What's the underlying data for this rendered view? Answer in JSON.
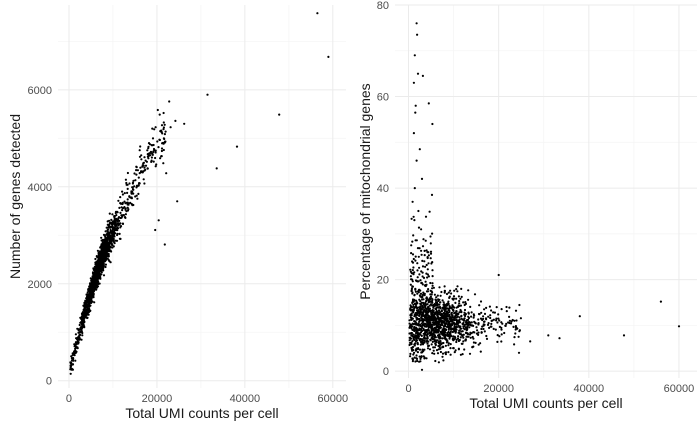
{
  "chart_data": [
    {
      "type": "scatter",
      "xlabel": "Total UMI counts per cell",
      "ylabel": "Number of genes detected",
      "xlim": [
        -2500,
        63000
      ],
      "ylim": [
        -150,
        7750
      ],
      "xticks": [
        0,
        20000,
        40000,
        60000
      ],
      "yticks": [
        0,
        2000,
        4000,
        6000
      ],
      "grid": true,
      "legend": "none",
      "point_color": "#000000",
      "points": [
        [
          56500,
          7580
        ],
        [
          59000,
          6680
        ],
        [
          31500,
          5900
        ],
        [
          22800,
          5760
        ],
        [
          47800,
          5490
        ],
        [
          24200,
          5360
        ],
        [
          26200,
          5300
        ],
        [
          23100,
          5230
        ],
        [
          38200,
          4830
        ],
        [
          33600,
          4380
        ],
        [
          22100,
          4280
        ],
        [
          24600,
          3700
        ],
        [
          20400,
          3310
        ],
        [
          19600,
          3110
        ],
        [
          21800,
          2810
        ]
      ],
      "main_trend": {
        "x": [
          200,
          1000,
          2000,
          3000,
          4000,
          5000,
          6000,
          7000,
          8000,
          9000,
          10000,
          12000,
          14000,
          16000,
          18000,
          20000,
          22000
        ],
        "y": [
          250,
          500,
          850,
          1200,
          1550,
          1850,
          2150,
          2400,
          2650,
          2850,
          3050,
          3450,
          3850,
          4250,
          4600,
          4900,
          5100
        ]
      }
    },
    {
      "type": "scatter",
      "xlabel": "Total UMI counts per cell",
      "ylabel": "Percentage of mitochondrial genes",
      "xlim": [
        -3000,
        64000
      ],
      "ylim": [
        -1.5,
        80
      ],
      "xticks": [
        0,
        20000,
        40000,
        60000
      ],
      "yticks": [
        0,
        20,
        40,
        60,
        80
      ],
      "grid": true,
      "legend": "none",
      "point_color": "#000000",
      "points": [
        [
          56000,
          15.2
        ],
        [
          60000,
          9.8
        ],
        [
          38000,
          12.0
        ],
        [
          47800,
          7.8
        ],
        [
          33500,
          7.2
        ],
        [
          31000,
          7.8
        ],
        [
          27000,
          6.5
        ],
        [
          20000,
          21.0
        ],
        [
          22500,
          11.0
        ],
        [
          24500,
          4.0
        ],
        [
          1800,
          76.0
        ],
        [
          1900,
          73.5
        ],
        [
          1400,
          69.0
        ],
        [
          2100,
          65.0
        ],
        [
          1200,
          63.0
        ],
        [
          1600,
          58.0
        ],
        [
          4500,
          58.5
        ],
        [
          3200,
          64.5
        ],
        [
          5300,
          54.0
        ],
        [
          1500,
          56.5
        ],
        [
          1200,
          52.0
        ],
        [
          2500,
          48.5
        ],
        [
          1800,
          46.0
        ],
        [
          3000,
          42.0
        ],
        [
          1400,
          40.0
        ],
        [
          5200,
          38.5
        ],
        [
          900,
          37.0
        ],
        [
          2200,
          35.0
        ],
        [
          1300,
          33.0
        ],
        [
          2800,
          31.0
        ],
        [
          3800,
          28.5
        ],
        [
          600,
          27.5
        ],
        [
          4200,
          26.0
        ],
        [
          1000,
          25.5
        ],
        [
          2000,
          22.0
        ],
        [
          3500,
          24.0
        ],
        [
          800,
          20.0
        ],
        [
          1500,
          18.0
        ],
        [
          6500,
          16.5
        ],
        [
          3000,
          0.3
        ]
      ],
      "main_cluster": {
        "x_center": 6500,
        "x_spread": 3500,
        "y_center": 10.5,
        "y_spread": 3.0
      }
    }
  ]
}
